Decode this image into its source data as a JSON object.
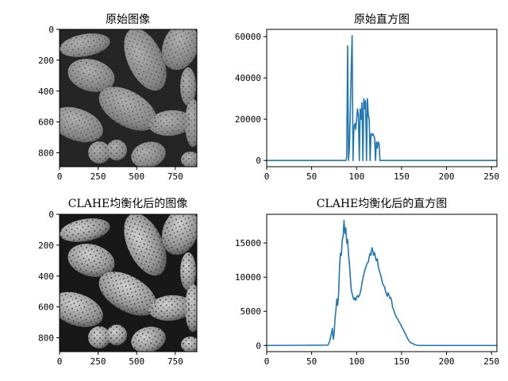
{
  "colors": {
    "series": "#1f77b4",
    "axes": "#000000",
    "background": "#ffffff"
  },
  "chart_data": [
    {
      "id": "orig-image",
      "type": "image",
      "title": "原始图像",
      "description": "grayscale micrograph of pollen grains (low contrast)",
      "xticks": [
        0,
        250,
        500,
        750
      ],
      "yticks": [
        0,
        200,
        400,
        600,
        800
      ],
      "xlim": [
        0,
        890
      ],
      "ylim": [
        890,
        0
      ]
    },
    {
      "id": "orig-hist",
      "type": "line",
      "title": "原始直方图",
      "xticks": [
        0,
        50,
        100,
        150,
        200,
        250
      ],
      "yticks": [
        0,
        20000,
        40000,
        60000
      ],
      "xlim": [
        0,
        256
      ],
      "ylim": [
        -3000,
        63500
      ],
      "series": [
        {
          "x": [
            0,
            88,
            89,
            90,
            91,
            92,
            93,
            94,
            95,
            96,
            97,
            98,
            99,
            100,
            101,
            102,
            103,
            104,
            105,
            106,
            107,
            108,
            109,
            110,
            111,
            112,
            113,
            114,
            115,
            116,
            117,
            118,
            119,
            120,
            121,
            122,
            123,
            124,
            125,
            126,
            127,
            128,
            129,
            130,
            131,
            132,
            133,
            134,
            135,
            256
          ],
          "y": [
            0,
            0,
            1500,
            55500,
            0,
            6000,
            25000,
            44000,
            60500,
            0,
            16000,
            18000,
            15000,
            20000,
            25000,
            22000,
            0,
            25000,
            20000,
            28000,
            0,
            30000,
            25000,
            29000,
            0,
            30000,
            22000,
            20000,
            0,
            13000,
            12000,
            13000,
            12000,
            11000,
            0,
            9000,
            6000,
            9000,
            8000,
            0,
            0,
            0,
            0,
            0,
            0,
            0,
            0,
            0,
            0,
            0
          ]
        }
      ]
    },
    {
      "id": "clahe-image",
      "type": "image",
      "title": "CLAHE均衡化后的图像",
      "description": "grayscale micrograph of pollen grains after CLAHE equalization (higher contrast)",
      "xticks": [
        0,
        250,
        500,
        750
      ],
      "yticks": [
        0,
        200,
        400,
        600,
        800
      ],
      "xlim": [
        0,
        890
      ],
      "ylim": [
        890,
        0
      ]
    },
    {
      "id": "clahe-hist",
      "type": "line",
      "title": "CLAHE均衡化后的直方图",
      "xticks": [
        0,
        50,
        100,
        150,
        200,
        250
      ],
      "yticks": [
        0,
        5000,
        10000,
        15000
      ],
      "xlim": [
        0,
        256
      ],
      "ylim": [
        -900,
        19200
      ],
      "series": [
        {
          "x": [
            0,
            68,
            70,
            72,
            73,
            74,
            75,
            76,
            77,
            78,
            79,
            80,
            81,
            82,
            83,
            84,
            85,
            86,
            87,
            88,
            89,
            90,
            91,
            92,
            93,
            94,
            95,
            96,
            97,
            98,
            99,
            100,
            101,
            102,
            103,
            104,
            105,
            106,
            107,
            108,
            109,
            110,
            111,
            112,
            113,
            114,
            115,
            116,
            117,
            118,
            119,
            120,
            121,
            122,
            123,
            124,
            125,
            126,
            127,
            128,
            129,
            130,
            131,
            132,
            133,
            134,
            135,
            136,
            137,
            138,
            139,
            140,
            141,
            142,
            143,
            144,
            145,
            146,
            147,
            148,
            149,
            150,
            151,
            152,
            153,
            154,
            155,
            156,
            157,
            158,
            159,
            160,
            162,
            164,
            166,
            168,
            170,
            175,
            180,
            256
          ],
          "y": [
            0,
            50,
            600,
            1800,
            2500,
            900,
            1700,
            4000,
            5200,
            6800,
            5900,
            7600,
            11500,
            13500,
            13200,
            15400,
            16000,
            18300,
            16400,
            17200,
            15000,
            15500,
            13200,
            12000,
            10000,
            8200,
            7600,
            7100,
            6700,
            7000,
            6600,
            7000,
            7300,
            7100,
            7300,
            7700,
            8300,
            9200,
            9800,
            10400,
            11000,
            11300,
            11800,
            12100,
            12200,
            13000,
            13500,
            13200,
            14300,
            13900,
            13200,
            13600,
            12800,
            12400,
            12700,
            11600,
            11100,
            10600,
            10200,
            9600,
            9000,
            8800,
            8600,
            8000,
            7600,
            7200,
            7700,
            7400,
            6900,
            7000,
            6500,
            5600,
            5300,
            4900,
            4500,
            4200,
            4000,
            3800,
            3500,
            3300,
            3100,
            2800,
            2500,
            2300,
            2000,
            1800,
            1500,
            1200,
            950,
            750,
            550,
            420,
            300,
            160,
            70,
            30,
            10,
            0,
            0,
            0
          ]
        }
      ]
    }
  ]
}
